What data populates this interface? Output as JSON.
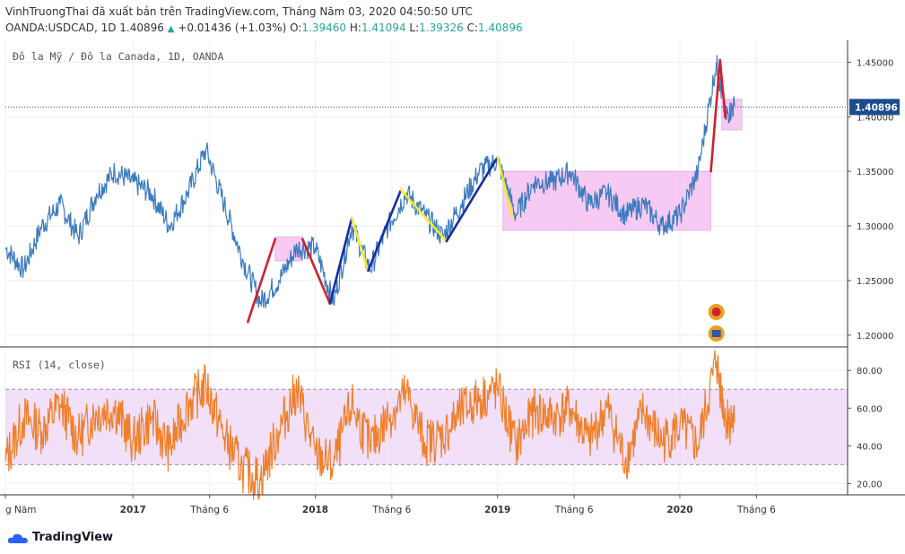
{
  "header": {
    "publisher_line": "VinhTruongThai đã xuất bản trên TradingView.com, Tháng Năm 03, 2020 04:50:50 UTC",
    "symbol": "OANDA:USDCAD, 1D",
    "last": "1.40896",
    "change": "+0.01436 (+1.03%)",
    "o_label": "O:",
    "o": "1.39460",
    "h_label": "H:",
    "h": "1.41094",
    "l_label": "L:",
    "l": "1.39326",
    "c_label": "C:",
    "c": "1.40896"
  },
  "price_pane": {
    "title": "Đô la Mỹ / Đô la Canada, 1D, OANDA",
    "price_label": "1.40896"
  },
  "rsi_pane": {
    "title": "RSI (14, close)"
  },
  "footer": {
    "brand": "TradingView"
  },
  "colors": {
    "price_line": "#3b7bbf",
    "rsi_line": "#f07f2a",
    "zone_fill": "#f5b9f0",
    "rsi_band": "#efd8f7",
    "red_wave": "#d0202f",
    "blue_wave": "#1a2ca0",
    "yellow_wave": "#f2ea2a",
    "price_tag": "#1a4d8f"
  },
  "chart_data": [
    {
      "type": "line",
      "name": "USDCAD",
      "y_ticks": [
        "1.45000",
        "1.40000",
        "1.35000",
        "1.30000",
        "1.25000",
        "1.20000"
      ],
      "x_ticks": [
        "g Năm",
        "2017",
        "Tháng 6",
        "2018",
        "Tháng 6",
        "2019",
        "Tháng 6",
        "2020",
        "Tháng 6"
      ],
      "ylim": [
        1.19,
        1.47
      ],
      "x": [
        2016.3,
        2016.4,
        2016.5,
        2016.6,
        2016.7,
        2016.8,
        2016.9,
        2017.0,
        2017.1,
        2017.2,
        2017.3,
        2017.4,
        2017.5,
        2017.6,
        2017.7,
        2017.8,
        2017.9,
        2018.0,
        2018.1,
        2018.2,
        2018.3,
        2018.4,
        2018.5,
        2018.6,
        2018.7,
        2018.8,
        2018.9,
        2019.0,
        2019.1,
        2019.2,
        2019.3,
        2019.4,
        2019.5,
        2019.6,
        2019.7,
        2019.8,
        2019.9,
        2020.0,
        2020.1,
        2020.2,
        2020.25,
        2020.3
      ],
      "values": [
        1.28,
        1.26,
        1.3,
        1.32,
        1.29,
        1.33,
        1.35,
        1.34,
        1.33,
        1.3,
        1.33,
        1.37,
        1.32,
        1.27,
        1.23,
        1.25,
        1.28,
        1.28,
        1.23,
        1.3,
        1.26,
        1.3,
        1.33,
        1.31,
        1.29,
        1.32,
        1.35,
        1.36,
        1.31,
        1.34,
        1.34,
        1.35,
        1.32,
        1.33,
        1.31,
        1.32,
        1.3,
        1.31,
        1.35,
        1.45,
        1.4,
        1.41
      ],
      "overlays": {
        "zones": [
          {
            "x": [
              2017.78,
              2017.93
            ],
            "y": [
              1.268,
              1.29
            ]
          },
          {
            "x": [
              2019.03,
              2020.17
            ],
            "y": [
              1.296,
              1.35
            ]
          },
          {
            "x": [
              2020.23,
              2020.34
            ],
            "y": [
              1.388,
              1.416
            ]
          }
        ],
        "waves": [
          {
            "color": "red",
            "points": [
              [
                2017.63,
                1.212
              ],
              [
                2017.78,
                1.288
              ]
            ]
          },
          {
            "color": "red",
            "points": [
              [
                2017.93,
                1.288
              ],
              [
                2018.08,
                1.229
              ]
            ]
          },
          {
            "color": "blue",
            "points": [
              [
                2018.08,
                1.229
              ],
              [
                2018.2,
                1.307
              ]
            ]
          },
          {
            "color": "yellow",
            "points": [
              [
                2018.2,
                1.307
              ],
              [
                2018.29,
                1.259
              ]
            ]
          },
          {
            "color": "blue",
            "points": [
              [
                2018.29,
                1.259
              ],
              [
                2018.47,
                1.333
              ]
            ]
          },
          {
            "color": "yellow",
            "points": [
              [
                2018.47,
                1.333
              ],
              [
                2018.72,
                1.286
              ]
            ]
          },
          {
            "color": "blue",
            "points": [
              [
                2018.72,
                1.286
              ],
              [
                2019.0,
                1.363
              ]
            ]
          },
          {
            "color": "yellow",
            "points": [
              [
                2019.0,
                1.363
              ],
              [
                2019.08,
                1.309
              ]
            ]
          },
          {
            "color": "red",
            "points": [
              [
                2020.17,
                1.35
              ],
              [
                2020.22,
                1.452
              ]
            ]
          },
          {
            "color": "red",
            "points": [
              [
                2020.22,
                1.452
              ],
              [
                2020.25,
                1.399
              ]
            ]
          }
        ],
        "last_price": 1.40896
      }
    },
    {
      "type": "line",
      "name": "RSI (14, close)",
      "y_ticks": [
        "80.00",
        "60.00",
        "40.00",
        "20.00"
      ],
      "ylim": [
        14,
        92
      ],
      "bands": [
        30,
        70
      ],
      "x": [
        2016.3,
        2016.4,
        2016.5,
        2016.6,
        2016.7,
        2016.8,
        2016.9,
        2017.0,
        2017.1,
        2017.2,
        2017.3,
        2017.4,
        2017.5,
        2017.6,
        2017.7,
        2017.8,
        2017.9,
        2018.0,
        2018.1,
        2018.2,
        2018.3,
        2018.4,
        2018.5,
        2018.6,
        2018.7,
        2018.8,
        2018.9,
        2019.0,
        2019.1,
        2019.2,
        2019.3,
        2019.4,
        2019.5,
        2019.6,
        2019.7,
        2019.8,
        2019.9,
        2020.0,
        2020.1,
        2020.2,
        2020.25,
        2020.3
      ],
      "values": [
        32,
        55,
        48,
        62,
        44,
        58,
        60,
        42,
        55,
        38,
        62,
        72,
        45,
        28,
        22,
        48,
        70,
        35,
        30,
        62,
        40,
        55,
        68,
        42,
        45,
        58,
        65,
        70,
        40,
        58,
        55,
        60,
        42,
        60,
        32,
        58,
        42,
        50,
        40,
        85,
        55,
        52
      ]
    }
  ]
}
